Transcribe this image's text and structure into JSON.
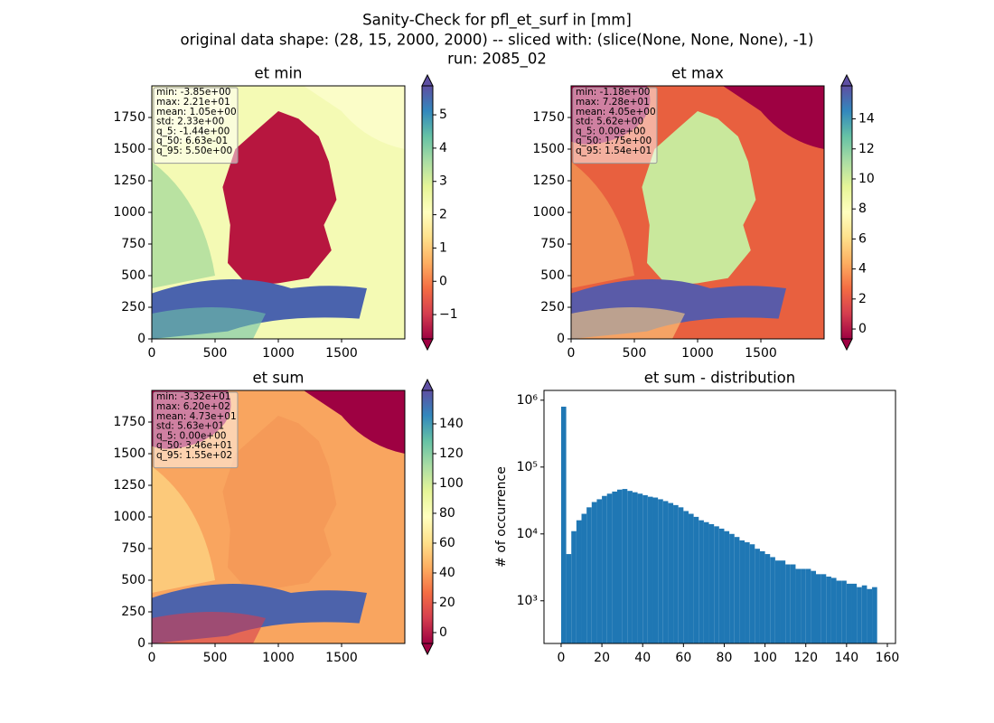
{
  "figure_title": [
    "Sanity-Check for pfl_et_surf in [mm]",
    "original data shape: (28, 15, 2000, 2000) -- sliced with: (slice(None, None, None), -1)",
    "run: 2085_02"
  ],
  "chart_data": [
    {
      "type": "heatmap",
      "title": "et min",
      "xlim": [
        0,
        2000
      ],
      "ylim": [
        0,
        2000
      ],
      "xticks": [
        0,
        500,
        1000,
        1500
      ],
      "yticks": [
        0,
        250,
        500,
        750,
        1000,
        1250,
        1500,
        1750
      ],
      "stats": [
        "min: -3.85e+00",
        "max: 2.21e+01",
        "mean: 1.05e+00",
        "std: 2.33e+00",
        "q_5: -1.44e+00",
        "q_50: 6.63e-01",
        "q_95: 5.50e+00"
      ],
      "colormap": [
        "#9e0142",
        "#d53e4f",
        "#f46d43",
        "#fdae61",
        "#fee08b",
        "#ffffbf",
        "#e6f598",
        "#abdda4",
        "#66c2a5",
        "#3288bd",
        "#5e4fa2"
      ],
      "colorbar": {
        "lim": [
          -1.73,
          5.87
        ],
        "ticks": [
          {
            "value": -1,
            "label": "−1"
          },
          0,
          1,
          2,
          3,
          4,
          5
        ]
      }
    },
    {
      "type": "heatmap",
      "title": "et max",
      "xlim": [
        0,
        2000
      ],
      "ylim": [
        0,
        2000
      ],
      "xticks": [
        0,
        500,
        1000,
        1500
      ],
      "yticks": [
        0,
        250,
        500,
        750,
        1000,
        1250,
        1500,
        1750
      ],
      "stats": [
        "min: -1.18e+00",
        "max: 7.28e+01",
        "mean: 4.05e+00",
        "std: 5.62e+00",
        "q_5: 0.00e+00",
        "q_50: 1.75e+00",
        "q_95: 1.54e+01"
      ],
      "colormap": [
        "#9e0142",
        "#d53e4f",
        "#f46d43",
        "#fdae61",
        "#fee08b",
        "#ffffbf",
        "#e6f598",
        "#abdda4",
        "#66c2a5",
        "#3288bd",
        "#5e4fa2"
      ],
      "colorbar": {
        "lim": [
          -0.66,
          16.2
        ],
        "ticks": [
          0,
          2,
          4,
          6,
          8,
          10,
          12,
          14
        ]
      }
    },
    {
      "type": "heatmap",
      "title": "et sum",
      "xlim": [
        0,
        2000
      ],
      "ylim": [
        0,
        2000
      ],
      "xticks": [
        0,
        500,
        1000,
        1500
      ],
      "yticks": [
        0,
        250,
        500,
        750,
        1000,
        1250,
        1500,
        1750
      ],
      "stats": [
        "min: -3.32e+01",
        "max: 6.20e+02",
        "mean: 4.73e+01",
        "std: 5.63e+01",
        "q_5: 0.00e+00",
        "q_50: 3.46e+01",
        "q_95: 1.55e+02"
      ],
      "colormap": [
        "#9e0142",
        "#d53e4f",
        "#f46d43",
        "#fdae61",
        "#fee08b",
        "#ffffbf",
        "#e6f598",
        "#abdda4",
        "#66c2a5",
        "#3288bd",
        "#5e4fa2"
      ],
      "colorbar": {
        "lim": [
          -7.3,
          162.4
        ],
        "ticks": [
          0,
          20,
          40,
          60,
          80,
          100,
          120,
          140
        ]
      }
    },
    {
      "type": "histogram",
      "title": "et sum - distribution",
      "y_label": "# of occurrence",
      "color": "#1f77b4",
      "log_y": true,
      "xlim": [
        -8.4,
        164
      ],
      "xticks": [
        0,
        20,
        40,
        60,
        80,
        100,
        120,
        140,
        160
      ],
      "ylim": [
        230,
        1400000
      ],
      "yticks": [
        {
          "value": 1000,
          "label": "10³"
        },
        {
          "value": 10000,
          "label": "10⁴"
        },
        {
          "value": 100000,
          "label": "10⁵"
        },
        {
          "value": 1000000,
          "label": "10⁶"
        }
      ],
      "bins": [
        0,
        2.5,
        5,
        7.5,
        10,
        12.5,
        15,
        17.5,
        20,
        22.5,
        25,
        27.5,
        30,
        32.5,
        35,
        37.5,
        40,
        42.5,
        45,
        47.5,
        50,
        52.5,
        55,
        57.5,
        60,
        62.5,
        65,
        67.5,
        70,
        72.5,
        75,
        77.5,
        80,
        82.5,
        85,
        87.5,
        90,
        92.5,
        95,
        97.5,
        100,
        102.5,
        105,
        107.5,
        110,
        112.5,
        115,
        117.5,
        120,
        122.5,
        125,
        127.5,
        130,
        132.5,
        135,
        137.5,
        140,
        142.5,
        145,
        147.5,
        150,
        152.5,
        155
      ],
      "values": [
        800000,
        5000,
        11000,
        16000,
        20000,
        25000,
        30000,
        33000,
        37000,
        40000,
        43000,
        46000,
        47000,
        44000,
        42000,
        40000,
        38000,
        36000,
        35000,
        33000,
        31000,
        29000,
        27000,
        25000,
        22000,
        20000,
        18000,
        16000,
        15000,
        14000,
        13000,
        12000,
        11000,
        10000,
        9000,
        8000,
        7500,
        7000,
        6000,
        5500,
        5000,
        4500,
        4000,
        4000,
        3500,
        3500,
        3000,
        3000,
        3000,
        2800,
        2500,
        2500,
        2300,
        2200,
        2000,
        2000,
        1800,
        1800,
        1600,
        1700,
        1500,
        1600
      ]
    }
  ]
}
